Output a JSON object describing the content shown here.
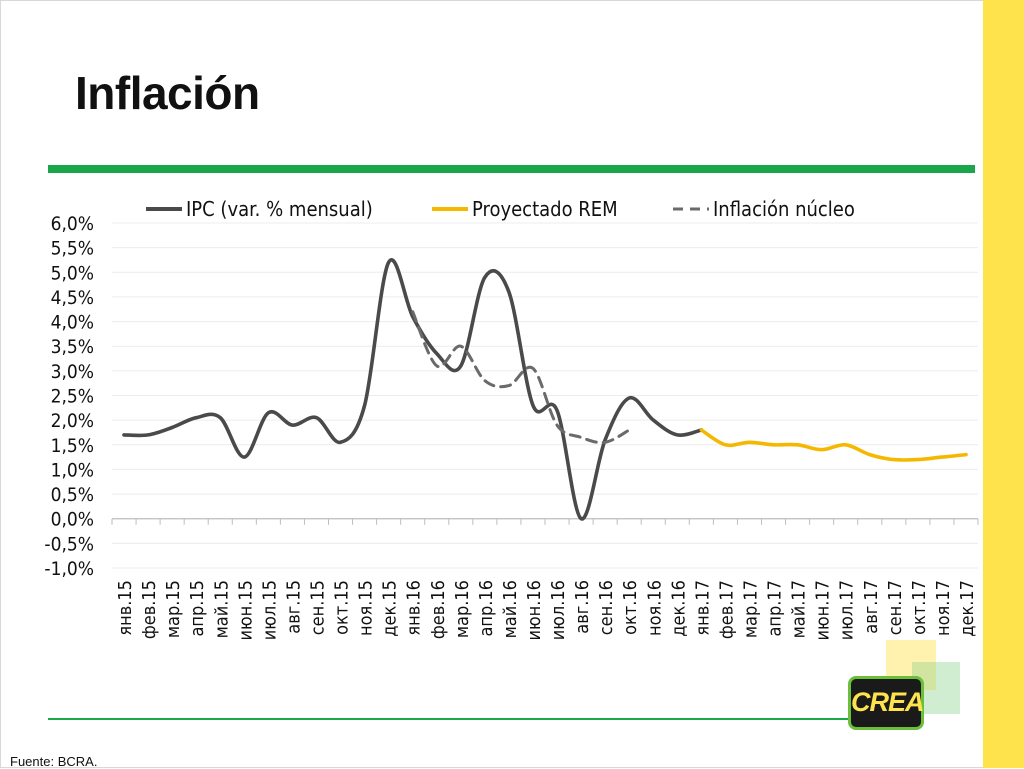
{
  "slide": {
    "title": "Inflación",
    "source": "Fuente: BCRA.",
    "logo_text": "CREA"
  },
  "colors": {
    "accent_green": "#1aa64a",
    "side_bar_yellow": "#ffe34d",
    "ipc_series": "#4a4a4a",
    "rem_series": "#f5b800",
    "core_series": "#6a6a6a"
  },
  "chart_data": {
    "type": "line",
    "title": "",
    "xlabel": "",
    "ylabel": "",
    "ylim": [
      -1.0,
      6.0
    ],
    "y_ticks": [
      "-1,0%",
      "-0,5%",
      "0,0%",
      "0,5%",
      "1,0%",
      "1,5%",
      "2,0%",
      "2,5%",
      "3,0%",
      "3,5%",
      "4,0%",
      "4,5%",
      "5,0%",
      "5,5%",
      "6,0%"
    ],
    "y_tick_values": [
      -1.0,
      -0.5,
      0.0,
      0.5,
      1.0,
      1.5,
      2.0,
      2.5,
      3.0,
      3.5,
      4.0,
      4.5,
      5.0,
      5.5,
      6.0
    ],
    "grid": true,
    "legend_position": "top",
    "categories": [
      "янв.15",
      "фев.15",
      "мар.15",
      "апр.15",
      "май.15",
      "июн.15",
      "июл.15",
      "авг.15",
      "сен.15",
      "окт.15",
      "ноя.15",
      "дек.15",
      "янв.16",
      "фев.16",
      "мар.16",
      "апр.16",
      "май.16",
      "июн.16",
      "июл.16",
      "авг.16",
      "сен.16",
      "окт.16",
      "ноя.16",
      "дек.16",
      "янв.17",
      "фев.17",
      "мар.17",
      "апр.17",
      "май.17",
      "июн.17",
      "июл.17",
      "авг.17",
      "сен.17",
      "окт.17",
      "ноя.17",
      "дек.17"
    ],
    "series": [
      {
        "name": "IPC (var. % mensual)",
        "style": "solid",
        "color": "#4a4a4a",
        "values": [
          1.7,
          1.7,
          1.85,
          2.05,
          2.05,
          1.25,
          2.15,
          1.9,
          2.05,
          1.55,
          2.3,
          5.2,
          4.1,
          3.35,
          3.1,
          4.9,
          4.6,
          2.3,
          2.2,
          0.0,
          1.6,
          2.45,
          2.0,
          1.7,
          1.8,
          null,
          null,
          null,
          null,
          null,
          null,
          null,
          null,
          null,
          null,
          null
        ]
      },
      {
        "name": "Proyectado REM",
        "style": "solid",
        "color": "#f5b800",
        "values": [
          null,
          null,
          null,
          null,
          null,
          null,
          null,
          null,
          null,
          null,
          null,
          null,
          null,
          null,
          null,
          null,
          null,
          null,
          null,
          null,
          null,
          null,
          null,
          null,
          1.8,
          1.5,
          1.55,
          1.5,
          1.5,
          1.4,
          1.5,
          1.3,
          1.2,
          1.2,
          1.25,
          1.3
        ]
      },
      {
        "name": "Inflación núcleo",
        "style": "dashed",
        "color": "#6a6a6a",
        "values": [
          null,
          null,
          null,
          null,
          null,
          null,
          null,
          null,
          null,
          null,
          null,
          null,
          4.2,
          3.1,
          3.5,
          2.8,
          2.7,
          3.05,
          1.9,
          1.65,
          1.55,
          1.8,
          null,
          null,
          null,
          null,
          null,
          null,
          null,
          null,
          null,
          null,
          null,
          null,
          null,
          null
        ]
      }
    ]
  }
}
